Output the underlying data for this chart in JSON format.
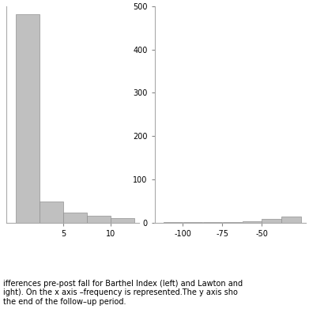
{
  "left_hist": {
    "bin_edges": [
      0,
      2.5,
      5,
      7.5,
      10,
      12.5
    ],
    "counts": [
      540,
      55,
      25,
      18,
      12
    ],
    "xlim": [
      -1,
      13
    ],
    "ylim": [
      0,
      560
    ],
    "xticks": [
      5,
      10
    ],
    "yticks": [],
    "bar_color": "#c0c0c0",
    "edge_color": "#909090"
  },
  "right_hist": {
    "bin_edges": [
      -112.5,
      -100,
      -87.5,
      -75,
      -62.5,
      -50,
      -37.5,
      -25
    ],
    "counts": [
      1,
      1,
      1,
      1,
      3,
      8,
      14
    ],
    "xlim": [
      -118,
      -22
    ],
    "ylim": [
      0,
      500
    ],
    "xticks": [
      -100,
      -75,
      -50
    ],
    "yticks": [
      0,
      100,
      200,
      300,
      400,
      500
    ],
    "bar_color": "#c0c0c0",
    "edge_color": "#909090"
  },
  "caption_lines": [
    "ifferences pre-post fall for Barthel Index (left) and Lawton and",
    "ight). On the x axis –frequency is represented.The y axis sho",
    "the end of the follow–up period."
  ],
  "caption_fontsize": 7.0,
  "bg_color": "#ffffff"
}
